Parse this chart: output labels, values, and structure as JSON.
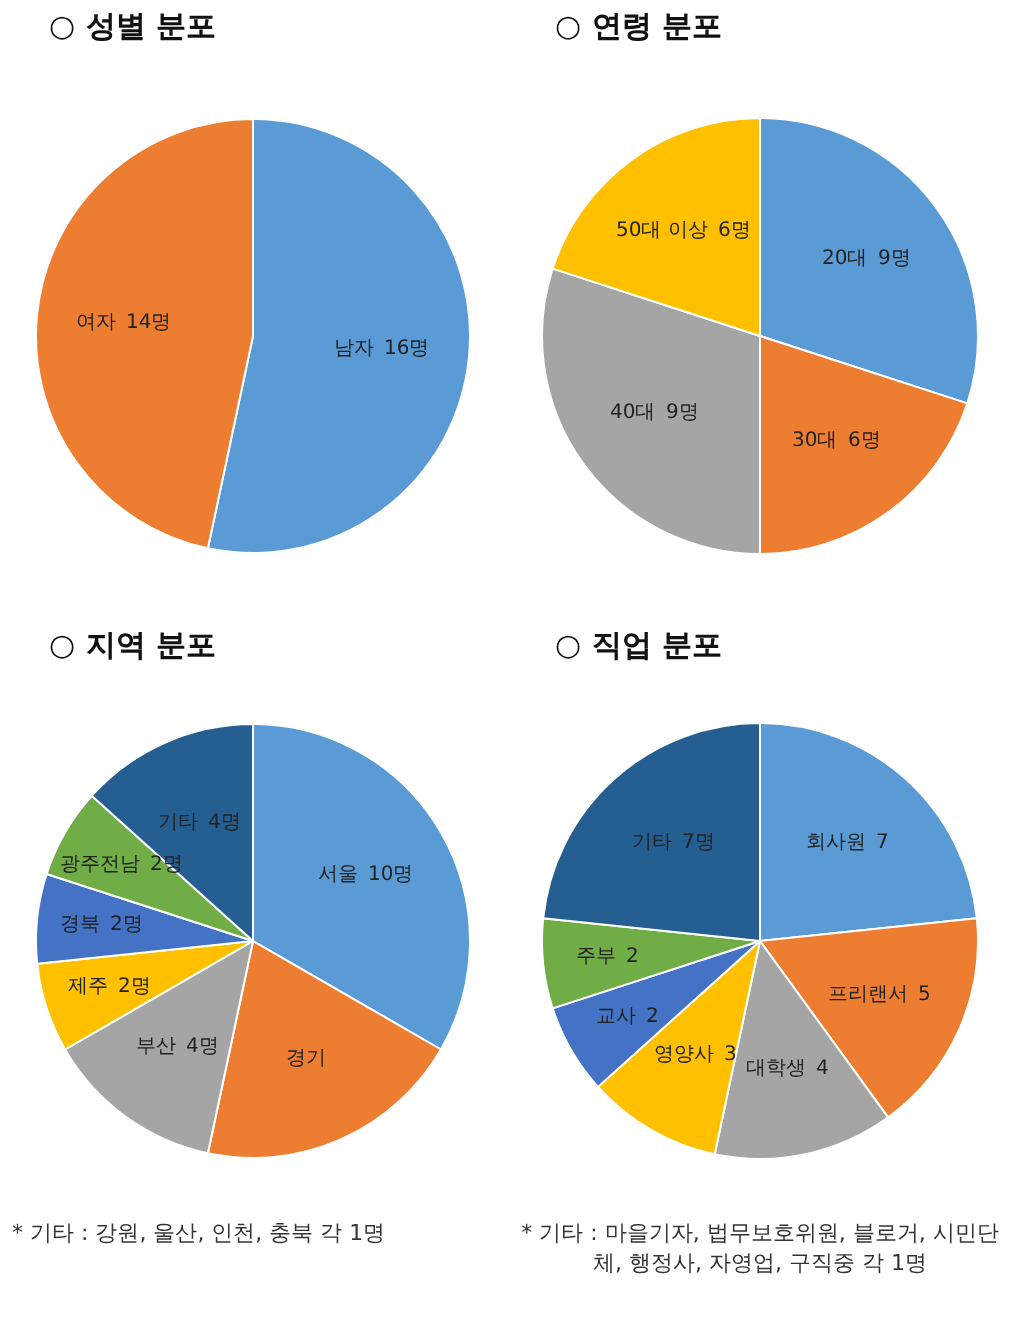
{
  "chart_data": [
    {
      "type": "pie",
      "title": "○ 성별 분포",
      "categories": [
        "남자",
        "여자"
      ],
      "values": [
        16,
        14
      ],
      "colors": [
        "#5b9bd5",
        "#ed7d31"
      ],
      "value_labels": [
        "16명",
        "14명"
      ]
    },
    {
      "type": "pie",
      "title": "○ 연령 분포",
      "categories": [
        "20대",
        "30대",
        "40대",
        "50대 이상"
      ],
      "values": [
        9,
        6,
        9,
        6
      ],
      "colors": [
        "#5b9bd5",
        "#ed7d31",
        "#a5a5a5",
        "#ffc000"
      ],
      "value_labels": [
        "9명",
        "6명",
        "9명",
        "6명"
      ]
    },
    {
      "type": "pie",
      "title": "○ 지역 분포",
      "categories": [
        "서울",
        "경기",
        "부산",
        "제주",
        "경북",
        "광주전남",
        "기타"
      ],
      "values": [
        10,
        6,
        4,
        2,
        2,
        2,
        4
      ],
      "colors": [
        "#5b9bd5",
        "#ed7d31",
        "#a5a5a5",
        "#ffc000",
        "#4472c4",
        "#70ad47",
        "#255e91"
      ],
      "value_labels": [
        "10명",
        null,
        "4명",
        "2명",
        "2명",
        "2명",
        "4명"
      ],
      "annotations": [
        "* 기타 : 강원, 울산, 인천, 충북 각 1명"
      ]
    },
    {
      "type": "pie",
      "title": "○ 직업 분포",
      "categories": [
        "회사원",
        "프리랜서",
        "대학생",
        "영양사",
        "교사",
        "주부",
        "기타"
      ],
      "values": [
        7,
        5,
        4,
        3,
        2,
        2,
        7
      ],
      "colors": [
        "#5b9bd5",
        "#ed7d31",
        "#a5a5a5",
        "#ffc000",
        "#4472c4",
        "#70ad47",
        "#255e91"
      ],
      "value_labels": [
        "7",
        "5",
        "4",
        "3",
        "2",
        "2",
        "7명"
      ],
      "annotations": [
        "* 기타 : 마을기자, 법무보호위원, 블로거, 시민단체, 행정사, 자영업, 구직중 각 1명"
      ]
    }
  ]
}
